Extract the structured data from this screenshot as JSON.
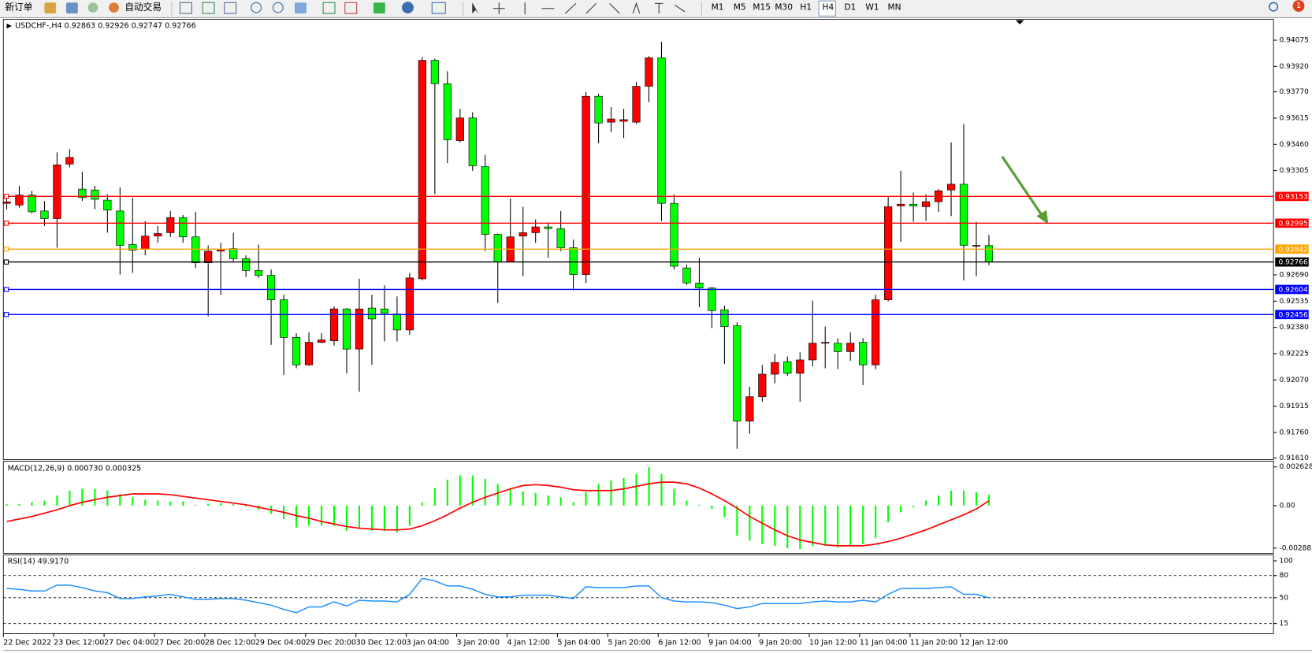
{
  "toolbar": {
    "new_order": "新订单",
    "auto_trading": "自动交易",
    "timeframes": [
      "M1",
      "M5",
      "M15",
      "M30",
      "H1",
      "H4",
      "D1",
      "W1",
      "MN"
    ],
    "badge": "1"
  },
  "chart_data": [
    {
      "type": "candlestick",
      "title": "USDCHF-,H4 0.92863 0.92926 0.92747 0.92766",
      "categories": [
        "22 Dec 2022",
        null,
        null,
        null,
        "23 Dec 12:00",
        null,
        null,
        null,
        "27 Dec 04:00",
        null,
        null,
        null,
        "27 Dec 20:00",
        null,
        null,
        null,
        "28 Dec 12:00",
        null,
        null,
        null,
        "29 Dec 04:00",
        null,
        null,
        null,
        "29 Dec 20:00",
        null,
        null,
        null,
        "30 Dec 12:00",
        null,
        null,
        null,
        "3 Jan 04:00",
        null,
        null,
        null,
        "3 Jan 20:00",
        null,
        null,
        null,
        "4 Jan 12:00",
        null,
        null,
        null,
        "5 Jan 04:00",
        null,
        null,
        null,
        "5 Jan 20:00",
        null,
        null,
        null,
        "6 Jan 12:00",
        null,
        null,
        null,
        "9 Jan 04:00",
        null,
        null,
        null,
        "9 Jan 20:00",
        null,
        null,
        null,
        "10 Jan 12:00",
        null,
        null,
        null,
        "11 Jan 04:00",
        null,
        null,
        null,
        "11 Jan 20:00",
        null,
        null,
        null,
        "12 Jan 12:00",
        null,
        null
      ],
      "open": [
        0.93112,
        0.93102,
        0.93161,
        0.93067,
        0.93022,
        0.93344,
        0.93196,
        0.93191,
        0.93131,
        0.93067,
        0.92869,
        0.9284,
        0.92919,
        0.92939,
        0.93028,
        0.92914,
        0.92761,
        0.9283,
        0.92845,
        0.92786,
        0.92716,
        0.92687,
        0.92543,
        0.92321,
        0.92159,
        0.92292,
        0.92301,
        0.92489,
        0.92252,
        0.92494,
        0.92489,
        0.92459,
        0.92365,
        0.92667,
        0.93956,
        0.93818,
        0.93482,
        0.93616,
        0.93329,
        0.92929,
        0.92766,
        0.92919,
        0.92939,
        0.92973,
        0.92963,
        0.9285,
        0.92692,
        0.93744,
        0.93591,
        0.93596,
        0.93591,
        0.93803,
        0.93971,
        0.93112,
        0.92731,
        0.92642,
        0.92613,
        0.92484,
        0.9239,
        0.91827,
        0.91971,
        0.92104,
        0.92178,
        0.92109,
        0.92188,
        0.92287,
        0.92287,
        0.92237,
        0.92292,
        0.92159,
        0.92543,
        0.93097,
        0.93107,
        0.93092,
        0.93122,
        0.93191,
        0.93225,
        0.92859,
        0.92863
      ],
      "high": [
        0.93161,
        0.93215,
        0.93186,
        0.93126,
        0.93413,
        0.93433,
        0.93299,
        0.93215,
        0.93166,
        0.93206,
        0.93146,
        0.93008,
        0.92978,
        0.93067,
        0.93043,
        0.93062,
        0.92864,
        0.92879,
        0.92939,
        0.92805,
        0.92869,
        0.92721,
        0.92573,
        0.92346,
        0.92351,
        0.92346,
        0.92504,
        0.92494,
        0.92667,
        0.92573,
        0.92628,
        0.92563,
        0.92702,
        0.93976,
        0.93966,
        0.93892,
        0.9367,
        0.9365,
        0.93398,
        0.92934,
        0.93141,
        0.93092,
        0.93017,
        0.92998,
        0.93067,
        0.92899,
        0.93769,
        0.93759,
        0.9368,
        0.9367,
        0.93828,
        0.93981,
        0.94065,
        0.93166,
        0.92751,
        0.92791,
        0.92618,
        0.92509,
        0.9241,
        0.9203,
        0.92159,
        0.92223,
        0.92208,
        0.92233,
        0.92538,
        0.92385,
        0.92316,
        0.92351,
        0.92316,
        0.92573,
        0.93151,
        0.93304,
        0.93176,
        0.93166,
        0.93196,
        0.93472,
        0.93581,
        0.93003,
        0.92926
      ],
      "low": [
        0.93077,
        0.93087,
        0.93052,
        0.92978,
        0.9285,
        0.93324,
        0.93126,
        0.93077,
        0.92939,
        0.92692,
        0.92702,
        0.92805,
        0.92879,
        0.92914,
        0.92879,
        0.92731,
        0.92445,
        0.92573,
        0.92771,
        0.92677,
        0.92672,
        0.92277,
        0.92099,
        0.92139,
        0.92154,
        0.92287,
        0.92272,
        0.92109,
        0.92,
        0.92159,
        0.92297,
        0.92297,
        0.92336,
        0.92657,
        0.93166,
        0.93349,
        0.93472,
        0.93304,
        0.9283,
        0.92524,
        0.92766,
        0.92682,
        0.92879,
        0.92791,
        0.9283,
        0.92598,
        0.92642,
        0.93467,
        0.93532,
        0.93497,
        0.93581,
        0.93709,
        0.93008,
        0.92721,
        0.92632,
        0.92499,
        0.92376,
        0.92164,
        0.91664,
        0.91753,
        0.91941,
        0.9205,
        0.92094,
        0.91941,
        0.92149,
        0.92139,
        0.92134,
        0.92183,
        0.9204,
        0.92134,
        0.92534,
        0.92884,
        0.93003,
        0.93008,
        0.93062,
        0.93037,
        0.92657,
        0.92682,
        0.92747
      ],
      "close": [
        0.93121,
        0.93161,
        0.93062,
        0.93022,
        0.93339,
        0.93383,
        0.93146,
        0.93136,
        0.93072,
        0.92864,
        0.92835,
        0.92919,
        0.92934,
        0.93028,
        0.92914,
        0.92761,
        0.9283,
        0.9284,
        0.92786,
        0.92716,
        0.92687,
        0.92543,
        0.92321,
        0.92159,
        0.92292,
        0.92306,
        0.92489,
        0.92252,
        0.92489,
        0.9243,
        0.92464,
        0.92365,
        0.92672,
        0.93956,
        0.93818,
        0.93487,
        0.93616,
        0.93334,
        0.92929,
        0.92766,
        0.92914,
        0.92939,
        0.92973,
        0.92963,
        0.9285,
        0.92692,
        0.93744,
        0.93586,
        0.9361,
        0.93606,
        0.93803,
        0.93971,
        0.93112,
        0.92741,
        0.92642,
        0.92613,
        0.92479,
        0.92385,
        0.91827,
        0.91971,
        0.92104,
        0.92173,
        0.92109,
        0.92188,
        0.92287,
        0.92292,
        0.92237,
        0.92287,
        0.92159,
        0.92543,
        0.93092,
        0.93107,
        0.93097,
        0.93122,
        0.93186,
        0.93225,
        0.92864,
        0.92864,
        0.92766
      ],
      "up_color": "#ff0000",
      "down_color": "#00ff00",
      "ylim": [
        0.91605,
        0.94193
      ],
      "yticks": [
        0.94075,
        {
          "value": 0.9392,
          "label": "0.93920"
        },
        {
          "value": 0.9377,
          "label": "0.93770"
        },
        0.93615,
        {
          "value": 0.9346,
          "label": "0.93460"
        },
        0.93305,
        {
          "value": 0.9269,
          "label": "0.92690"
        },
        0.92535,
        {
          "value": 0.9238,
          "label": "0.92380"
        },
        0.92225,
        {
          "value": 0.9207,
          "label": "0.92070"
        },
        0.91915,
        {
          "value": 0.9176,
          "label": "0.91760"
        },
        {
          "value": 0.9161,
          "label": "0.91610"
        }
      ],
      "levels": [
        {
          "value": 0.93153,
          "color": "#ff0000"
        },
        {
          "value": 0.92995,
          "color": "#ff0000"
        },
        {
          "value": 0.92842,
          "color": "#ffa500"
        },
        {
          "value": 0.92766,
          "color": "#000000"
        },
        {
          "value": 0.92604,
          "color": "#0000ff"
        },
        {
          "value": 0.92456,
          "color": "#0000ff"
        }
      ]
    },
    {
      "type": "macd",
      "title": "MACD(12,26,9) 0.000730 0.000325",
      "series": [
        {
          "kind": "bar",
          "color": "#00ff00",
          "values": [
            0.000114,
            0.000114,
            0.000227,
            0.000341,
            0.000682,
            0.001022,
            0.001136,
            0.001136,
            0.001022,
            0.000795,
            0.000568,
            0.000398,
            0.000341,
            0.000284,
            0.000284,
            5.7e-05,
            0.000114,
            0.00017,
            0.000114,
            -5.7e-05,
            -0.000284,
            -0.000568,
            -0.000909,
            -0.001477,
            -0.001363,
            -0.001363,
            -0.001363,
            -0.001704,
            -0.00159,
            -0.001704,
            -0.001704,
            -0.001818,
            -0.001363,
            0.000227,
            0.001193,
            0.001761,
            0.002045,
            0.002045,
            0.001818,
            0.001477,
            0.001136,
            0.000966,
            0.000852,
            0.000682,
            0.000568,
            0.000227,
            0.000909,
            0.001477,
            0.001704,
            0.001874,
            0.002158,
            0.002613,
            0.002158,
            0.001136,
            0.000341,
            5.7e-05,
            -0.000227,
            -0.000795,
            -0.002045,
            -0.002386,
            -0.002613,
            -0.002726,
            -0.002897,
            -0.002954,
            -0.002726,
            -0.002726,
            -0.00284,
            -0.002726,
            -0.002613,
            -0.002215,
            -0.001136,
            -0.000454,
            -0.000114,
            0.000341,
            0.000682,
            0.001022,
            0.001022,
            0.000909,
            0.00073
          ]
        },
        {
          "kind": "line",
          "color": "#ff0000",
          "values": [
            -0.001079,
            -0.000909,
            -0.000738,
            -0.000511,
            -0.000284,
            0,
            0.000227,
            0.000398,
            0.000568,
            0.000682,
            0.000795,
            0.000795,
            0.000795,
            0.000738,
            0.000625,
            0.000511,
            0.000398,
            0.000284,
            0.00017,
            5.7e-05,
            -0.000114,
            -0.000284,
            -0.000454,
            -0.000682,
            -0.000852,
            -0.001079,
            -0.00125,
            -0.00142,
            -0.001534,
            -0.00159,
            -0.001647,
            -0.001647,
            -0.00159,
            -0.001363,
            -0.001022,
            -0.000625,
            -0.00017,
            0.000227,
            0.000568,
            0.000852,
            0.001136,
            0.001363,
            0.00142,
            0.001363,
            0.00125,
            0.001079,
            0.001022,
            0.001022,
            0.001022,
            0.001136,
            0.001306,
            0.001477,
            0.00159,
            0.00159,
            0.001477,
            0.001193,
            0.000795,
            0.000341,
            -0.00017,
            -0.000738,
            -0.001193,
            -0.001647,
            -0.002045,
            -0.002329,
            -0.002499,
            -0.00267,
            -0.002726,
            -0.002726,
            -0.002726,
            -0.002613,
            -0.002442,
            -0.002215,
            -0.001931,
            -0.001647,
            -0.001306,
            -0.000966,
            -0.000625,
            -0.000227,
            0.000325
          ]
        }
      ],
      "ylim": [
        -0.003181,
        0.002897
      ],
      "yticks": [
        0.002628,
        {
          "value": 0,
          "label": "0.00"
        },
        -0.002881
      ]
    },
    {
      "type": "line",
      "title": "RSI(14) 49.9170",
      "color": "#1e90ff",
      "values": [
        62.6,
        61.4,
        59.2,
        59.2,
        67.1,
        67.1,
        63.7,
        59.2,
        56.9,
        49.0,
        49.0,
        51.2,
        52.4,
        54.6,
        51.2,
        47.8,
        47.8,
        49.0,
        49.0,
        46.7,
        43.3,
        39.9,
        34.2,
        29.7,
        37.6,
        37.6,
        44.4,
        38.8,
        46.7,
        45.6,
        45.6,
        44.4,
        54.6,
        76.2,
        72.8,
        66.0,
        66.0,
        61.4,
        54.6,
        51.2,
        51.2,
        53.5,
        53.5,
        53.5,
        51.2,
        49.0,
        64.8,
        63.7,
        63.7,
        63.7,
        66.0,
        66.0,
        50.1,
        45.6,
        44.4,
        44.4,
        43.3,
        39.9,
        35.4,
        37.6,
        42.2,
        42.2,
        42.2,
        42.2,
        44.4,
        45.6,
        44.4,
        44.4,
        46.7,
        44.4,
        54.6,
        62.6,
        62.6,
        62.6,
        63.7,
        64.8,
        54.6,
        54.6,
        49.917
      ],
      "ylim": [
        3.6,
        106.8
      ],
      "yticks": [
        100,
        80,
        50,
        15
      ],
      "levels": [
        80,
        50,
        15
      ]
    }
  ]
}
